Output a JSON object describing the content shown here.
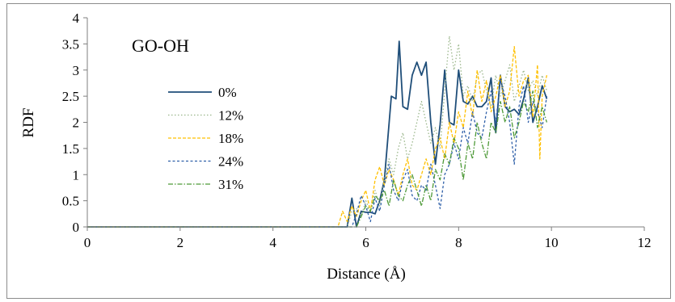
{
  "chart_data": {
    "type": "line",
    "title": "GO-OH",
    "xlabel": "Distance (Å)",
    "ylabel": "RDF",
    "xlim": [
      0,
      12
    ],
    "ylim": [
      0,
      4
    ],
    "xticks": [
      "0",
      "2",
      "4",
      "6",
      "8",
      "10",
      "12"
    ],
    "yticks": [
      "0",
      "0.5",
      "1",
      "1.5",
      "2",
      "2.5",
      "3",
      "3.5",
      "4"
    ],
    "grid": false,
    "legend_position": "left",
    "series": [
      {
        "name": "0%",
        "color": "#1f4e79",
        "dash": "solid",
        "width": 1.8,
        "points": [
          [
            0,
            0
          ],
          [
            5.5,
            0
          ],
          [
            5.6,
            0
          ],
          [
            5.7,
            0.55
          ],
          [
            5.8,
            0
          ],
          [
            5.9,
            0.3
          ],
          [
            6.0,
            0.28
          ],
          [
            6.1,
            0.28
          ],
          [
            6.2,
            0.25
          ],
          [
            6.3,
            0.5
          ],
          [
            6.4,
            0.9
          ],
          [
            6.55,
            2.5
          ],
          [
            6.65,
            2.45
          ],
          [
            6.72,
            3.55
          ],
          [
            6.8,
            2.3
          ],
          [
            6.9,
            2.25
          ],
          [
            7.0,
            2.9
          ],
          [
            7.1,
            3.15
          ],
          [
            7.2,
            2.9
          ],
          [
            7.3,
            3.15
          ],
          [
            7.4,
            2.0
          ],
          [
            7.5,
            1.2
          ],
          [
            7.6,
            1.95
          ],
          [
            7.7,
            3.0
          ],
          [
            7.8,
            2.0
          ],
          [
            7.9,
            1.95
          ],
          [
            8.0,
            3.0
          ],
          [
            8.1,
            2.4
          ],
          [
            8.2,
            2.35
          ],
          [
            8.3,
            2.5
          ],
          [
            8.4,
            2.3
          ],
          [
            8.5,
            2.3
          ],
          [
            8.6,
            2.4
          ],
          [
            8.7,
            2.85
          ],
          [
            8.8,
            1.8
          ],
          [
            8.9,
            2.9
          ],
          [
            9.0,
            2.3
          ],
          [
            9.1,
            2.2
          ],
          [
            9.2,
            2.25
          ],
          [
            9.3,
            2.15
          ],
          [
            9.4,
            2.45
          ],
          [
            9.5,
            2.85
          ],
          [
            9.6,
            2.0
          ],
          [
            9.7,
            2.3
          ],
          [
            9.8,
            2.7
          ],
          [
            9.9,
            2.45
          ]
        ]
      },
      {
        "name": "12%",
        "color": "#9ab68a",
        "dash": "1.5,2.5",
        "width": 1.3,
        "points": [
          [
            0,
            0
          ],
          [
            5.6,
            0
          ],
          [
            5.7,
            0.3
          ],
          [
            5.8,
            0.35
          ],
          [
            5.9,
            0.2
          ],
          [
            6.0,
            0.5
          ],
          [
            6.1,
            0.3
          ],
          [
            6.2,
            0.7
          ],
          [
            6.3,
            0.4
          ],
          [
            6.4,
            0.9
          ],
          [
            6.5,
            1.3
          ],
          [
            6.6,
            1.0
          ],
          [
            6.7,
            1.5
          ],
          [
            6.8,
            1.8
          ],
          [
            6.9,
            1.3
          ],
          [
            7.0,
            1.6
          ],
          [
            7.1,
            2.0
          ],
          [
            7.2,
            2.4
          ],
          [
            7.3,
            2.0
          ],
          [
            7.4,
            1.6
          ],
          [
            7.5,
            1.9
          ],
          [
            7.6,
            1.5
          ],
          [
            7.7,
            2.6
          ],
          [
            7.8,
            3.65
          ],
          [
            7.9,
            3.0
          ],
          [
            8.0,
            3.5
          ],
          [
            8.1,
            2.5
          ],
          [
            8.2,
            2.7
          ],
          [
            8.3,
            2.4
          ],
          [
            8.4,
            2.9
          ],
          [
            8.5,
            3.0
          ],
          [
            8.6,
            2.6
          ],
          [
            8.7,
            2.3
          ],
          [
            8.8,
            2.9
          ],
          [
            8.9,
            2.5
          ],
          [
            9.0,
            2.8
          ],
          [
            9.1,
            3.1
          ],
          [
            9.2,
            2.4
          ],
          [
            9.3,
            2.7
          ],
          [
            9.4,
            3.0
          ],
          [
            9.5,
            2.6
          ],
          [
            9.6,
            2.8
          ],
          [
            9.7,
            2.5
          ],
          [
            9.8,
            2.9
          ],
          [
            9.9,
            2.6
          ]
        ]
      },
      {
        "name": "18%",
        "color": "#ffc000",
        "dash": "4,2",
        "width": 1.3,
        "points": [
          [
            0,
            0
          ],
          [
            5.4,
            0
          ],
          [
            5.5,
            0.3
          ],
          [
            5.6,
            0.1
          ],
          [
            5.7,
            0.4
          ],
          [
            5.8,
            0.2
          ],
          [
            5.9,
            0.5
          ],
          [
            6.0,
            0.7
          ],
          [
            6.1,
            0.3
          ],
          [
            6.2,
            0.9
          ],
          [
            6.3,
            1.15
          ],
          [
            6.4,
            0.8
          ],
          [
            6.5,
            1.1
          ],
          [
            6.6,
            0.9
          ],
          [
            6.7,
            0.6
          ],
          [
            6.8,
            1.0
          ],
          [
            6.9,
            1.3
          ],
          [
            7.0,
            0.8
          ],
          [
            7.1,
            0.7
          ],
          [
            7.2,
            1.0
          ],
          [
            7.3,
            1.3
          ],
          [
            7.4,
            1.0
          ],
          [
            7.5,
            1.5
          ],
          [
            7.6,
            1.7
          ],
          [
            7.7,
            1.3
          ],
          [
            7.8,
            2.0
          ],
          [
            7.9,
            1.6
          ],
          [
            8.0,
            2.2
          ],
          [
            8.1,
            1.9
          ],
          [
            8.2,
            2.6
          ],
          [
            8.3,
            2.1
          ],
          [
            8.4,
            3.0
          ],
          [
            8.5,
            2.4
          ],
          [
            8.6,
            2.8
          ],
          [
            8.7,
            2.2
          ],
          [
            8.8,
            2.5
          ],
          [
            8.9,
            2.9
          ],
          [
            9.0,
            2.3
          ],
          [
            9.1,
            2.6
          ],
          [
            9.2,
            3.45
          ],
          [
            9.3,
            2.5
          ],
          [
            9.4,
            2.8
          ],
          [
            9.5,
            2.9
          ],
          [
            9.6,
            2.1
          ],
          [
            9.7,
            3.1
          ],
          [
            9.75,
            1.3
          ],
          [
            9.8,
            2.5
          ],
          [
            9.9,
            2.9
          ]
        ]
      },
      {
        "name": "24%",
        "color": "#2e5fa8",
        "dash": "3,2.5",
        "width": 1.3,
        "points": [
          [
            0,
            0
          ],
          [
            5.7,
            0
          ],
          [
            5.8,
            0.25
          ],
          [
            5.9,
            0.6
          ],
          [
            6.0,
            0.4
          ],
          [
            6.1,
            0.1
          ],
          [
            6.2,
            0.55
          ],
          [
            6.3,
            0.3
          ],
          [
            6.4,
            0.8
          ],
          [
            6.5,
            1.2
          ],
          [
            6.6,
            0.7
          ],
          [
            6.7,
            0.5
          ],
          [
            6.8,
            0.9
          ],
          [
            6.9,
            1.1
          ],
          [
            7.0,
            0.6
          ],
          [
            7.1,
            0.5
          ],
          [
            7.2,
            0.8
          ],
          [
            7.3,
            0.7
          ],
          [
            7.4,
            1.2
          ],
          [
            7.5,
            0.8
          ],
          [
            7.6,
            0.35
          ],
          [
            7.7,
            1.0
          ],
          [
            7.8,
            1.2
          ],
          [
            7.9,
            1.6
          ],
          [
            8.0,
            1.3
          ],
          [
            8.1,
            1.9
          ],
          [
            8.2,
            1.6
          ],
          [
            8.3,
            2.2
          ],
          [
            8.4,
            1.8
          ],
          [
            8.5,
            1.7
          ],
          [
            8.6,
            2.2
          ],
          [
            8.7,
            2.6
          ],
          [
            8.8,
            2.0
          ],
          [
            8.9,
            2.8
          ],
          [
            9.0,
            2.5
          ],
          [
            9.1,
            2.0
          ],
          [
            9.2,
            1.2
          ],
          [
            9.3,
            2.3
          ],
          [
            9.4,
            2.7
          ],
          [
            9.5,
            2.0
          ],
          [
            9.6,
            2.4
          ],
          [
            9.7,
            2.2
          ],
          [
            9.8,
            1.9
          ],
          [
            9.9,
            2.5
          ]
        ]
      },
      {
        "name": "31%",
        "color": "#4e9a38",
        "dash": "6,2,1.5,2",
        "width": 1.3,
        "points": [
          [
            0,
            0
          ],
          [
            5.8,
            0
          ],
          [
            5.9,
            0.2
          ],
          [
            6.0,
            0.4
          ],
          [
            6.1,
            0.3
          ],
          [
            6.2,
            0.6
          ],
          [
            6.3,
            0.5
          ],
          [
            6.4,
            0.7
          ],
          [
            6.5,
            0.4
          ],
          [
            6.6,
            0.9
          ],
          [
            6.7,
            0.6
          ],
          [
            6.8,
            0.5
          ],
          [
            6.9,
            0.8
          ],
          [
            7.0,
            1.0
          ],
          [
            7.1,
            0.7
          ],
          [
            7.2,
            0.4
          ],
          [
            7.3,
            0.8
          ],
          [
            7.4,
            0.5
          ],
          [
            7.5,
            1.1
          ],
          [
            7.6,
            0.9
          ],
          [
            7.7,
            1.4
          ],
          [
            7.8,
            1.2
          ],
          [
            7.9,
            1.7
          ],
          [
            8.0,
            1.5
          ],
          [
            8.1,
            0.9
          ],
          [
            8.2,
            1.6
          ],
          [
            8.3,
            1.3
          ],
          [
            8.4,
            2.0
          ],
          [
            8.5,
            1.6
          ],
          [
            8.6,
            1.3
          ],
          [
            8.7,
            2.0
          ],
          [
            8.8,
            1.8
          ],
          [
            8.9,
            2.4
          ],
          [
            9.0,
            2.0
          ],
          [
            9.1,
            2.3
          ],
          [
            9.2,
            1.7
          ],
          [
            9.3,
            2.0
          ],
          [
            9.4,
            2.4
          ],
          [
            9.5,
            2.2
          ],
          [
            9.6,
            2.6
          ],
          [
            9.7,
            1.9
          ],
          [
            9.8,
            2.3
          ],
          [
            9.9,
            2.0
          ]
        ]
      }
    ]
  }
}
